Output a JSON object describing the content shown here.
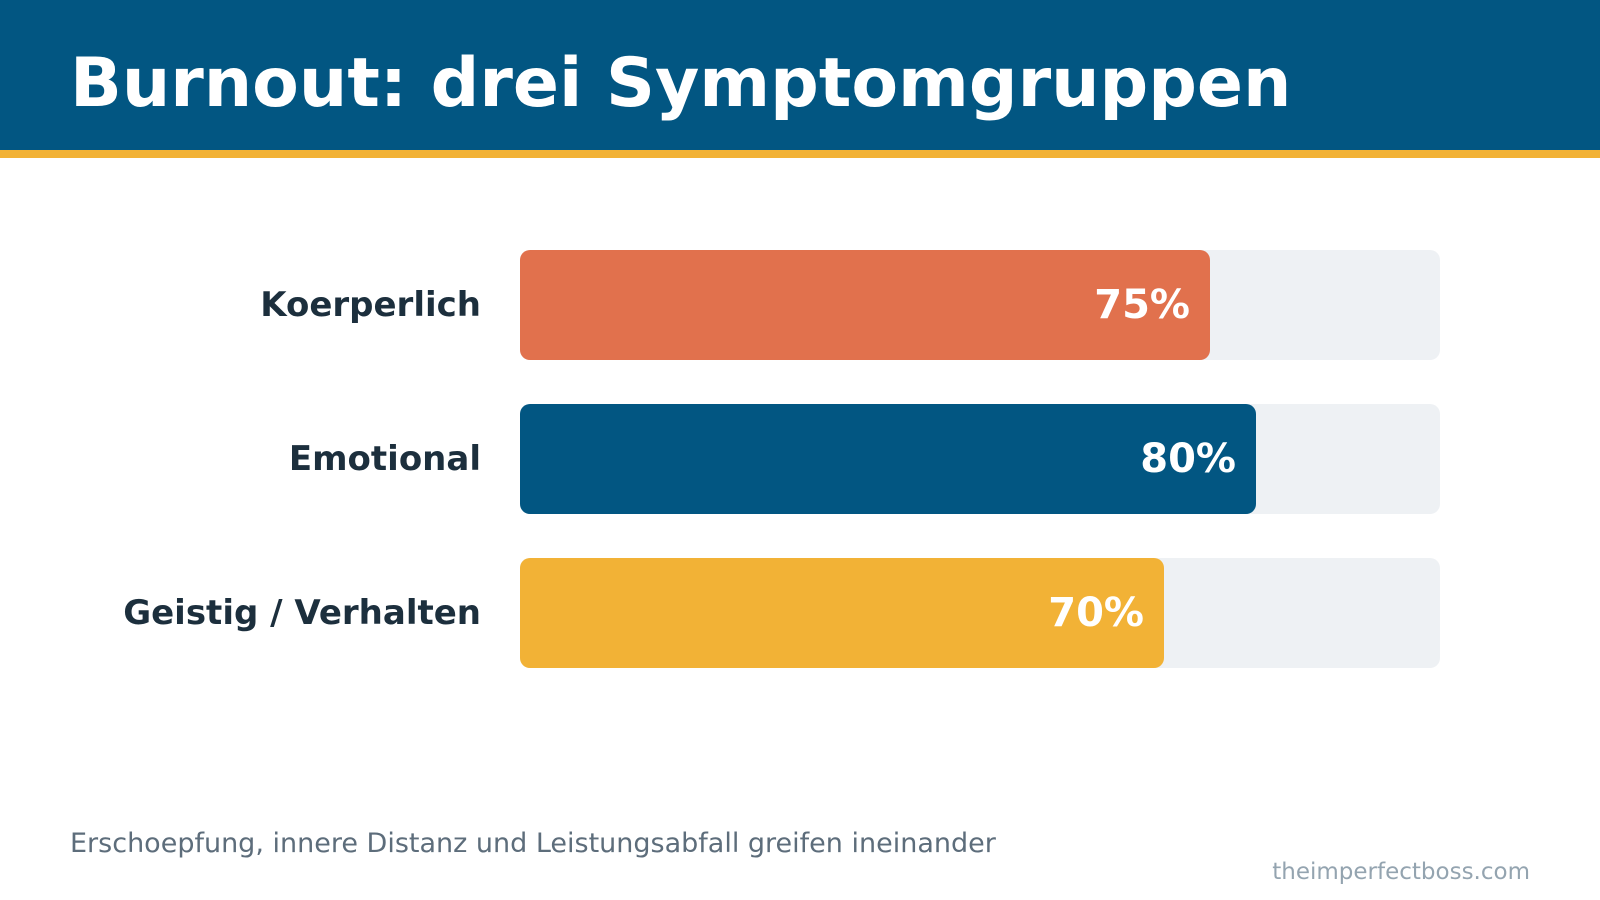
{
  "header": {
    "title": "Burnout: drei Symptomgruppen"
  },
  "footer": {
    "subtitle": "Erschoepfung, innere Distanz und Leistungsabfall greifen ineinander",
    "source": "theimperfectboss.com"
  },
  "colors": {
    "header_bg": "#025682",
    "accent_stripe": "#f2b236",
    "track": "#eef1f4",
    "label_text": "#1c2f3d",
    "value_text": "#ffffff"
  },
  "chart_data": {
    "type": "bar",
    "orientation": "horizontal",
    "categories": [
      "Koerperlich",
      "Emotional",
      "Geistig / Verhalten"
    ],
    "values": [
      75,
      80,
      70
    ],
    "value_labels": [
      "75%",
      "80%",
      "70%"
    ],
    "bar_colors": [
      "#e1714d",
      "#025682",
      "#f2b236"
    ],
    "xlim": [
      0,
      100
    ],
    "unit": "%",
    "grid": false,
    "legend": "none"
  }
}
